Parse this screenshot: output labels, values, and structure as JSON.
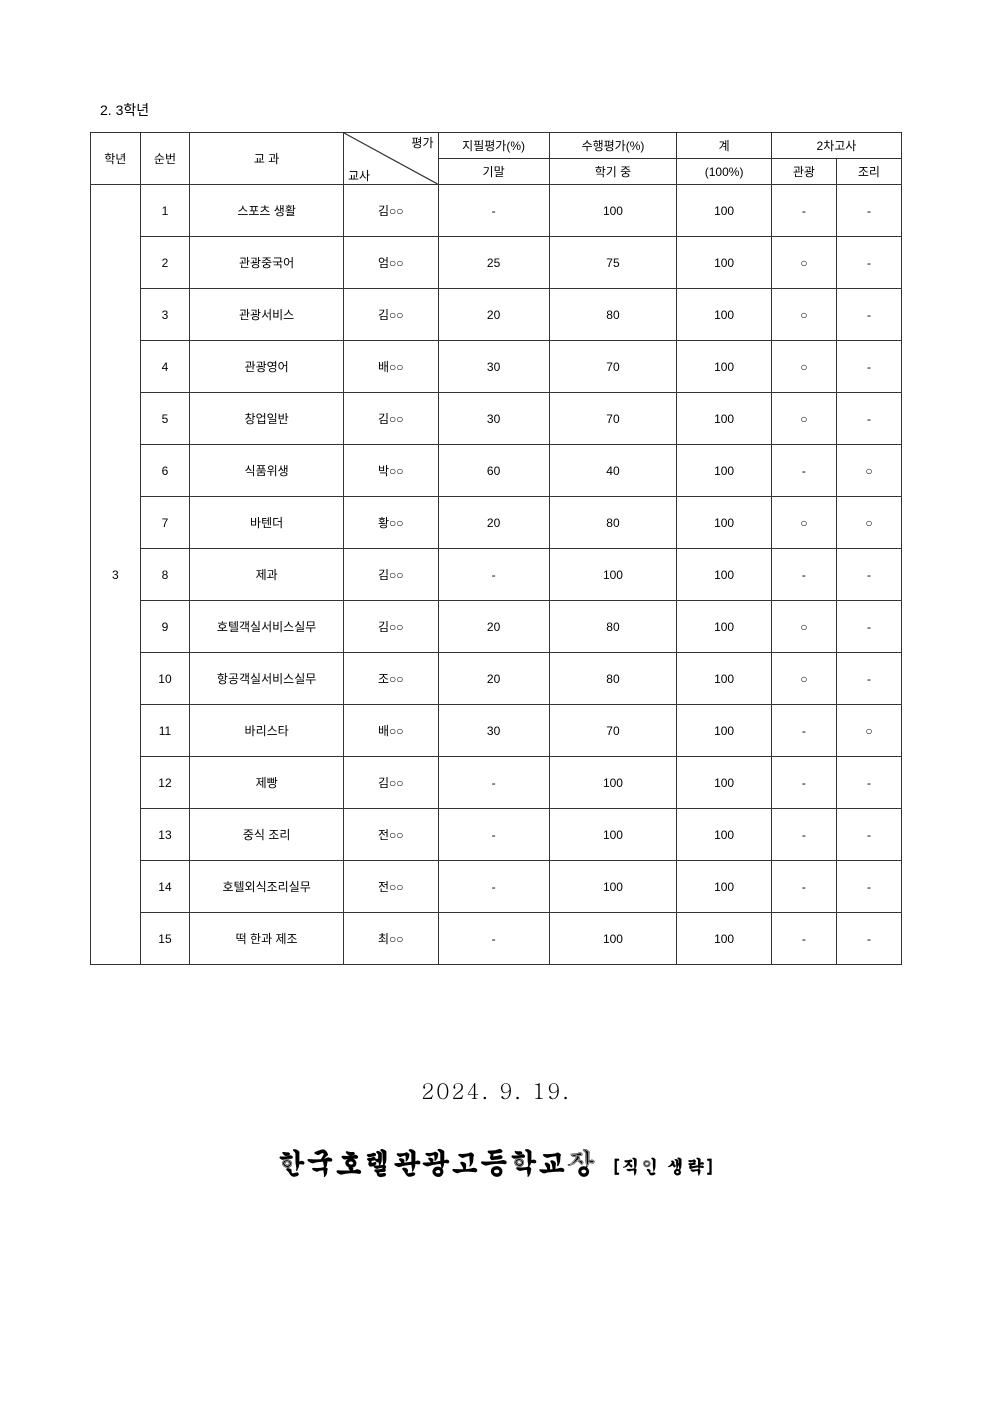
{
  "section_title": "2. 3학년",
  "headers": {
    "grade": "학년",
    "num": "순번",
    "subject": "교 과",
    "diag_top": "평가",
    "diag_bottom": "교사",
    "written": "지필평가(%)",
    "written_sub": "기말",
    "perf": "수행평가(%)",
    "perf_sub": "학기 중",
    "total": "계",
    "total_sub": "(100%)",
    "exam2": "2차고사",
    "exam2_a": "관광",
    "exam2_b": "조리"
  },
  "grade_value": "3",
  "rows": [
    {
      "num": "1",
      "subject": "스포츠 생활",
      "teacher": "김○○",
      "written": "-",
      "perf": "100",
      "total": "100",
      "e2a": "-",
      "e2b": "-"
    },
    {
      "num": "2",
      "subject": "관광중국어",
      "teacher": "엄○○",
      "written": "25",
      "perf": "75",
      "total": "100",
      "e2a": "○",
      "e2b": "-"
    },
    {
      "num": "3",
      "subject": "관광서비스",
      "teacher": "김○○",
      "written": "20",
      "perf": "80",
      "total": "100",
      "e2a": "○",
      "e2b": "-"
    },
    {
      "num": "4",
      "subject": "관광영어",
      "teacher": "배○○",
      "written": "30",
      "perf": "70",
      "total": "100",
      "e2a": "○",
      "e2b": "-"
    },
    {
      "num": "5",
      "subject": "창업일반",
      "teacher": "김○○",
      "written": "30",
      "perf": "70",
      "total": "100",
      "e2a": "○",
      "e2b": "-"
    },
    {
      "num": "6",
      "subject": "식품위생",
      "teacher": "박○○",
      "written": "60",
      "perf": "40",
      "total": "100",
      "e2a": "-",
      "e2b": "○"
    },
    {
      "num": "7",
      "subject": "바텐더",
      "teacher": "황○○",
      "written": "20",
      "perf": "80",
      "total": "100",
      "e2a": "○",
      "e2b": "○"
    },
    {
      "num": "8",
      "subject": "제과",
      "teacher": "김○○",
      "written": "-",
      "perf": "100",
      "total": "100",
      "e2a": "-",
      "e2b": "-"
    },
    {
      "num": "9",
      "subject": "호텔객실서비스실무",
      "teacher": "김○○",
      "written": "20",
      "perf": "80",
      "total": "100",
      "e2a": "○",
      "e2b": "-"
    },
    {
      "num": "10",
      "subject": "항공객실서비스실무",
      "teacher": "조○○",
      "written": "20",
      "perf": "80",
      "total": "100",
      "e2a": "○",
      "e2b": "-"
    },
    {
      "num": "11",
      "subject": "바리스타",
      "teacher": "배○○",
      "written": "30",
      "perf": "70",
      "total": "100",
      "e2a": "-",
      "e2b": "○"
    },
    {
      "num": "12",
      "subject": "제빵",
      "teacher": "김○○",
      "written": "-",
      "perf": "100",
      "total": "100",
      "e2a": "-",
      "e2b": "-"
    },
    {
      "num": "13",
      "subject": "중식 조리",
      "teacher": "전○○",
      "written": "-",
      "perf": "100",
      "total": "100",
      "e2a": "-",
      "e2b": "-"
    },
    {
      "num": "14",
      "subject": "호텔외식조리실무",
      "teacher": "전○○",
      "written": "-",
      "perf": "100",
      "total": "100",
      "e2a": "-",
      "e2b": "-"
    },
    {
      "num": "15",
      "subject": "떡 한과 제조",
      "teacher": "최○○",
      "written": "-",
      "perf": "100",
      "total": "100",
      "e2a": "-",
      "e2b": "-"
    }
  ],
  "footer": {
    "date": "2024. 9. 19.",
    "school": "한국호텔관광고등학교장",
    "stamp": "[직인 생략]"
  }
}
